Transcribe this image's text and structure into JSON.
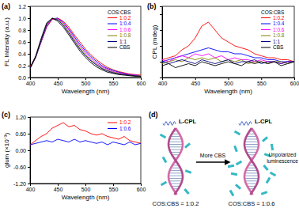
{
  "chart_data": [
    {
      "type": "line",
      "title": "(a)",
      "xlabel": "Wavelength (nm)",
      "ylabel": "FL Intensity (a.u.)",
      "x": [
        400,
        410,
        420,
        430,
        440,
        450,
        460,
        470,
        480,
        490,
        500,
        510,
        520,
        530,
        540,
        550,
        560,
        570,
        580,
        590,
        600
      ],
      "xlim": [
        400,
        600
      ],
      "xticks": [
        400,
        450,
        500,
        550,
        600
      ],
      "ylim": [
        0,
        1.2
      ],
      "yticks": [
        {
          "value": 0,
          "label": "0.0"
        },
        0.2,
        0.4,
        0.6,
        0.8,
        {
          "value": 1,
          "label": "1.0"
        },
        1.2
      ],
      "legend": "top-right",
      "annotations": [
        "COS:CBS"
      ],
      "series": [
        {
          "name": "1:0.2",
          "color": "#ff0000",
          "values": [
            0.18,
            0.35,
            0.6,
            0.85,
            0.98,
            1.0,
            0.95,
            0.85,
            0.72,
            0.6,
            0.48,
            0.38,
            0.3,
            0.23,
            0.17,
            0.13,
            0.1,
            0.08,
            0.06,
            0.05,
            0.04
          ]
        },
        {
          "name": "1:0.4",
          "color": "#0000ff",
          "values": [
            0.17,
            0.34,
            0.6,
            0.86,
            0.99,
            1.0,
            0.93,
            0.82,
            0.69,
            0.56,
            0.45,
            0.35,
            0.27,
            0.2,
            0.15,
            0.12,
            0.09,
            0.07,
            0.05,
            0.04,
            0.03
          ]
        },
        {
          "name": "1:0.6",
          "color": "#ff00ff",
          "values": [
            0.16,
            0.34,
            0.61,
            0.87,
            0.99,
            0.99,
            0.92,
            0.8,
            0.66,
            0.53,
            0.42,
            0.32,
            0.24,
            0.18,
            0.14,
            0.1,
            0.08,
            0.06,
            0.05,
            0.04,
            0.03
          ]
        },
        {
          "name": "1:0.8",
          "color": "#808000",
          "values": [
            0.15,
            0.33,
            0.62,
            0.89,
            1.0,
            0.98,
            0.9,
            0.77,
            0.63,
            0.5,
            0.39,
            0.29,
            0.22,
            0.16,
            0.12,
            0.09,
            0.07,
            0.05,
            0.04,
            0.03,
            0.03
          ]
        },
        {
          "name": "1:1",
          "color": "#000080",
          "values": [
            0.15,
            0.34,
            0.63,
            0.9,
            1.0,
            0.97,
            0.88,
            0.75,
            0.61,
            0.48,
            0.37,
            0.28,
            0.21,
            0.15,
            0.11,
            0.08,
            0.06,
            0.05,
            0.04,
            0.03,
            0.02
          ]
        },
        {
          "name": "CBS",
          "color": "#000000",
          "values": [
            0.16,
            0.36,
            0.66,
            0.92,
            1.0,
            0.95,
            0.85,
            0.72,
            0.58,
            0.45,
            0.34,
            0.25,
            0.18,
            0.13,
            0.09,
            0.07,
            0.05,
            0.04,
            0.03,
            0.02,
            0.02
          ]
        }
      ]
    },
    {
      "type": "line",
      "title": "(b)",
      "xlabel": "Wavelength (nm)",
      "ylabel": "CPL (mdeg)",
      "x": [
        400,
        410,
        420,
        430,
        440,
        450,
        460,
        470,
        480,
        490,
        500,
        510,
        520,
        530,
        540,
        550,
        560,
        570,
        580,
        590,
        600
      ],
      "xlim": [
        400,
        600
      ],
      "xticks": [
        400,
        450,
        500,
        550,
        600
      ],
      "ylim": [
        -4,
        14
      ],
      "yticks": [
        -4,
        0,
        4,
        8,
        12
      ],
      "tick_labels": "x",
      "legend": "top-right",
      "annotations": [
        "COS:CBS"
      ],
      "series": [
        {
          "name": "1:0.2",
          "color": "#ff0000",
          "values": [
            0.5,
            1,
            1.5,
            3,
            4,
            6,
            9,
            10,
            8,
            6,
            5,
            4,
            3.5,
            3,
            2,
            1.5,
            1,
            1,
            0.5,
            0.5,
            0
          ]
        },
        {
          "name": "1:0.4",
          "color": "#0000ff",
          "values": [
            0,
            0.5,
            1,
            1.5,
            2,
            2.5,
            3,
            3.5,
            3,
            2.5,
            2.5,
            2,
            2,
            1.5,
            1,
            1,
            0.5,
            0.5,
            0,
            0,
            0
          ]
        },
        {
          "name": "1:0.6",
          "color": "#ff00ff",
          "values": [
            0.5,
            0,
            1,
            1.5,
            1,
            2,
            1.5,
            2,
            1,
            1.5,
            0.5,
            1,
            0.5,
            0.5,
            0,
            0.5,
            0,
            0,
            -0.5,
            0,
            0
          ]
        },
        {
          "name": "1:0.8",
          "color": "#808000",
          "values": [
            -0.5,
            0,
            0.5,
            0,
            1,
            0.5,
            1,
            0.5,
            1,
            0,
            0.5,
            0,
            0.5,
            -0.5,
            0,
            0,
            -0.5,
            0,
            0,
            -0.5,
            0
          ]
        },
        {
          "name": "1:1",
          "color": "#000080",
          "values": [
            0,
            -0.5,
            0,
            0.5,
            0,
            -0.5,
            0.5,
            0,
            -0.5,
            0,
            0.5,
            -0.5,
            0,
            0,
            0.5,
            -0.5,
            0,
            0,
            -0.5,
            0,
            0
          ]
        },
        {
          "name": "CBS",
          "color": "#000000",
          "values": [
            -1,
            -0.5,
            -1.5,
            -1,
            -0.5,
            -1,
            0,
            -0.5,
            -1,
            -0.5,
            0,
            -0.5,
            -1,
            0,
            -0.5,
            0,
            -0.5,
            0,
            -1,
            -0.5,
            0
          ]
        }
      ]
    },
    {
      "type": "line",
      "title": "(c)",
      "xlabel": "Wavelength (nm)",
      "ylabel": "glum (×10⁻³)",
      "x": [
        400,
        410,
        420,
        430,
        440,
        450,
        460,
        470,
        480,
        490,
        500,
        510,
        520,
        530,
        540,
        550,
        560,
        570,
        580,
        590,
        600
      ],
      "xlim": [
        400,
        600
      ],
      "xticks": [
        400,
        450,
        500,
        550,
        600
      ],
      "ylim": [
        -1.2,
        1.2
      ],
      "yticks": [
        {
          "value": -1.2,
          "label": "-1.20"
        },
        {
          "value": -0.6,
          "label": "-0.60"
        },
        {
          "value": 0,
          "label": "0.00"
        },
        {
          "value": 0.6,
          "label": "0.60"
        },
        {
          "value": 1.2,
          "label": "1.20"
        }
      ],
      "legend": "top-right",
      "series": [
        {
          "name": "1:0.2",
          "color": "#ff0000",
          "values": [
            0.2,
            0.35,
            0.5,
            0.6,
            0.8,
            0.9,
            1.0,
            0.85,
            0.9,
            0.75,
            0.7,
            0.6,
            0.55,
            0.6,
            0.5,
            0.45,
            0.4,
            0.5,
            0.35,
            0.3,
            0.25
          ]
        },
        {
          "name": "1:0.6",
          "color": "#0000ff",
          "values": [
            0.2,
            0.25,
            0.3,
            0.35,
            0.3,
            0.4,
            0.35,
            0.3,
            0.4,
            0.3,
            0.35,
            0.3,
            0.25,
            0.3,
            0.2,
            0.3,
            0.25,
            0.2,
            0.3,
            0.2,
            0.25
          ]
        }
      ]
    }
  ],
  "diagram": {
    "label": "(d)",
    "left_emission": "L-CPL",
    "right_emission": "L-CPL",
    "arrow_label": "More CBS",
    "right_note": [
      "Unpolarized",
      "luminescence"
    ],
    "left_caption": "COS:CBS = 1:0.2",
    "right_caption": "COS:CBS = 1:0.6"
  }
}
